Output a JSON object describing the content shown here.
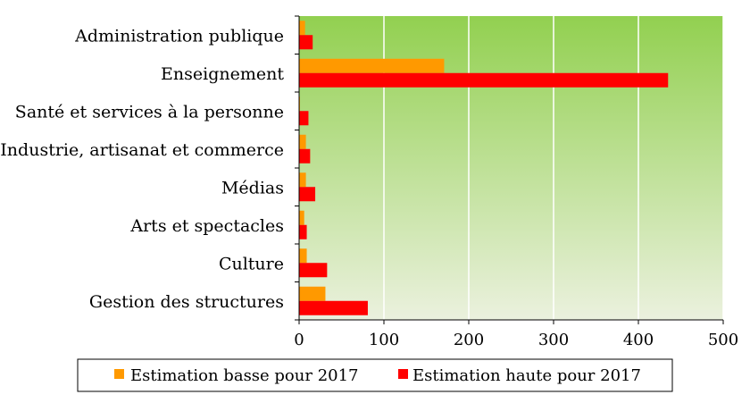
{
  "chart_data": {
    "type": "bar",
    "orientation": "horizontal",
    "categories": [
      "Administration publique",
      "Enseignement",
      "Santé et services à la personne",
      "Industrie, artisanat et commerce",
      "Médias",
      "Arts et spectacles",
      "Culture",
      "Gestion des structures"
    ],
    "series": [
      {
        "name": "Estimation basse pour 2017",
        "color": "#ff9900",
        "values": [
          7,
          171,
          1,
          8,
          8,
          6,
          9,
          31
        ]
      },
      {
        "name": "Estimation haute pour 2017",
        "color": "#ff0000",
        "values": [
          16,
          435,
          11,
          13,
          19,
          9,
          33,
          81
        ]
      }
    ],
    "xlim": [
      0,
      500
    ],
    "xticks": [
      0,
      100,
      200,
      300,
      400,
      500
    ],
    "grid": true,
    "legend": "bottom",
    "background": {
      "top": "#92d050",
      "bottom": "#ebf1de"
    }
  }
}
